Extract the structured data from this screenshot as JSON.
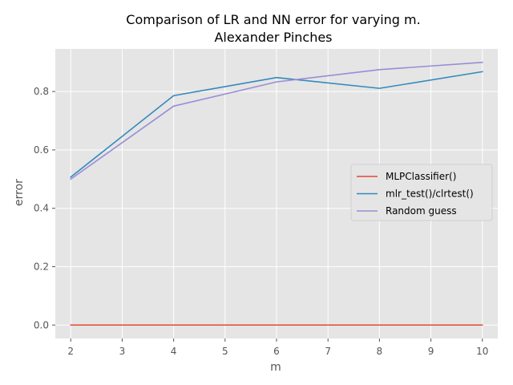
{
  "chart_data": {
    "type": "line",
    "title": "Comparison of LR and NN error for varying m.",
    "subtitle": "Alexander Pinches",
    "xlabel": "m",
    "ylabel": "error",
    "xlim": [
      1.7,
      10.3
    ],
    "ylim": [
      -0.046,
      0.946
    ],
    "x_ticks": [
      2,
      3,
      4,
      5,
      6,
      7,
      8,
      9,
      10
    ],
    "y_ticks": [
      0.0,
      0.2,
      0.4,
      0.6,
      0.8
    ],
    "y_tick_labels": [
      "0.0",
      "0.2",
      "0.4",
      "0.6",
      "0.8"
    ],
    "grid": true,
    "legend_position": "center-right",
    "series": [
      {
        "name": "MLPClassifier()",
        "color": "#E24A33",
        "x": [
          2,
          4,
          6,
          8,
          10
        ],
        "y": [
          0.0,
          0.0,
          0.0,
          0.0,
          0.0
        ]
      },
      {
        "name": "mlr_test()/clrtest()",
        "color": "#348ABD",
        "x": [
          2,
          4,
          6,
          8,
          10
        ],
        "y": [
          0.507,
          0.786,
          0.848,
          0.811,
          0.868
        ]
      },
      {
        "name": "Random guess",
        "color": "#988ED5",
        "x": [
          2,
          4,
          6,
          8,
          10
        ],
        "y": [
          0.5,
          0.75,
          0.833,
          0.875,
          0.9
        ]
      }
    ]
  }
}
